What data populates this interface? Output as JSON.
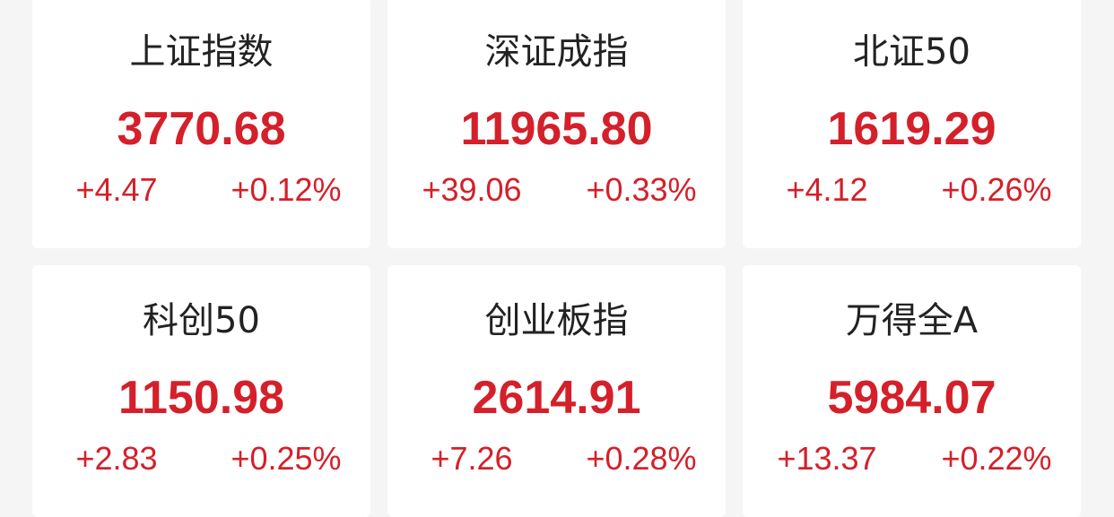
{
  "colors": {
    "up": "#d4202a",
    "background": "#f5f5f5",
    "card": "#ffffff",
    "title": "#222222"
  },
  "indices": [
    {
      "name": "上证指数",
      "value": "3770.68",
      "change": "+4.47",
      "percent": "+0.12%"
    },
    {
      "name": "深证成指",
      "value": "11965.80",
      "change": "+39.06",
      "percent": "+0.33%"
    },
    {
      "name": "北证50",
      "value": "1619.29",
      "change": "+4.12",
      "percent": "+0.26%"
    },
    {
      "name": "科创50",
      "value": "1150.98",
      "change": "+2.83",
      "percent": "+0.25%"
    },
    {
      "name": "创业板指",
      "value": "2614.91",
      "change": "+7.26",
      "percent": "+0.28%"
    },
    {
      "name": "万得全A",
      "value": "5984.07",
      "change": "+13.37",
      "percent": "+0.22%"
    }
  ]
}
